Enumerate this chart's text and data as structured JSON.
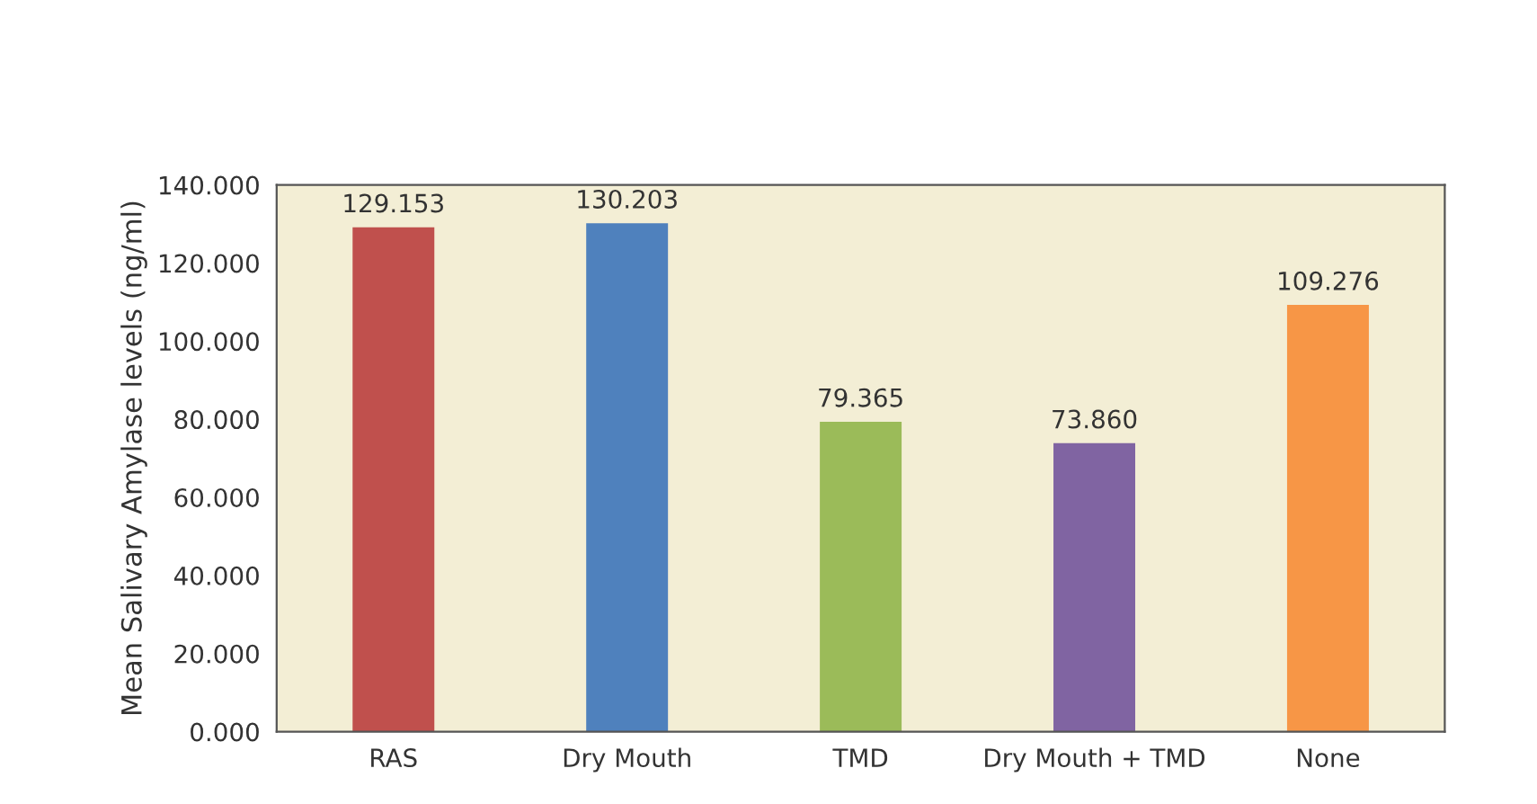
{
  "chart_data": {
    "type": "bar",
    "ylabel": "Mean Salivary Amylase levels (ng/ml)",
    "categories": [
      "RAS",
      "Dry Mouth",
      "TMD",
      "Dry Mouth + TMD",
      "None"
    ],
    "values": [
      129.153,
      130.203,
      79.365,
      73.86,
      109.276
    ],
    "value_labels": [
      "129.153",
      "130.203",
      "79.365",
      "73.860",
      "109.276"
    ],
    "colors": [
      "#c0504d",
      "#4f81bd",
      "#9bbb59",
      "#8064a2",
      "#f79646"
    ],
    "ylim": [
      0,
      140
    ],
    "yticks": [
      {
        "value": 0,
        "label": "0.000"
      },
      {
        "value": 20,
        "label": "20.000"
      },
      {
        "value": 40,
        "label": "40.000"
      },
      {
        "value": 60,
        "label": "60.000"
      },
      {
        "value": 80,
        "label": "80.000"
      },
      {
        "value": 100,
        "label": "100.000"
      },
      {
        "value": 120,
        "label": "120.000"
      },
      {
        "value": 140,
        "label": "140.000"
      }
    ],
    "grid": false,
    "legend": false
  }
}
